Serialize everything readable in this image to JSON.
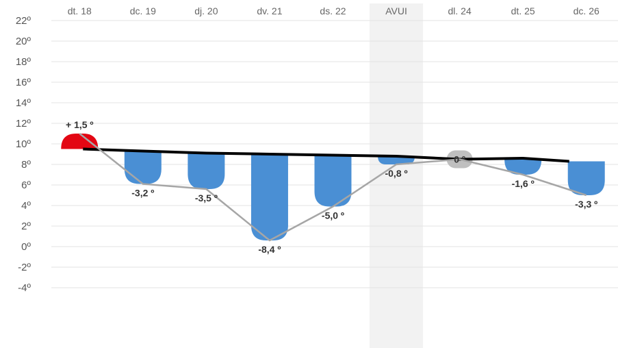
{
  "chart_data": {
    "type": "bar",
    "categories": [
      "dt. 18",
      "dc. 19",
      "dj. 20",
      "dv. 21",
      "ds. 22",
      "AVUI",
      "dl. 24",
      "dt. 25",
      "dc. 26"
    ],
    "highlight_category": "AVUI",
    "y_ticks": [
      "22º",
      "20º",
      "18º",
      "16º",
      "14º",
      "12º",
      "10º",
      "8º",
      "6º",
      "4º",
      "2º",
      "0º",
      "-2º",
      "-4º"
    ],
    "ylim": [
      -4,
      22
    ],
    "grid": true,
    "series": [
      {
        "values": [
          9.5,
          9.3,
          9.1,
          9.0,
          8.9,
          8.8,
          8.5,
          8.6,
          8.3
        ]
      },
      {
        "values": [
          11.0,
          6.1,
          5.6,
          0.6,
          3.9,
          8.0,
          8.5,
          7.0,
          5.0
        ]
      }
    ],
    "anomalies": [
      1.5,
      -3.2,
      -3.5,
      -8.4,
      -5.0,
      -0.8,
      0,
      -1.6,
      -3.3
    ],
    "anomaly_labels": [
      "+ 1,5 º",
      "-3,2 º",
      "-3,5 º",
      "-8,4 º",
      "-5,0 º",
      "-0,8 º",
      "0 º",
      "-1,6 º",
      "-3,3 º"
    ],
    "colors": {
      "positive": "#e30613",
      "negative": "#4a8fd4",
      "zero": "#bfbfbf",
      "normal_line": "#000000",
      "actual_line": "#a6a6a6",
      "grid": "#e3e3e3",
      "highlight_band": "#f2f2f2"
    }
  }
}
